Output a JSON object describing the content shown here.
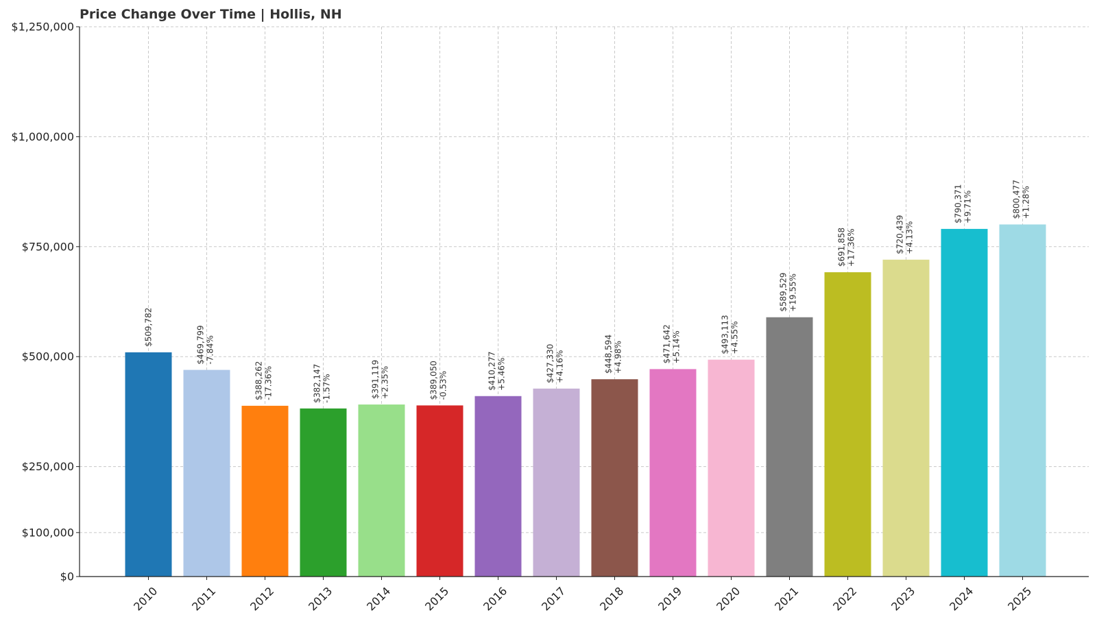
{
  "chart_data": {
    "type": "bar",
    "title": "Price Change Over Time | Hollis, NH",
    "xlabel": "",
    "ylabel": "",
    "categories": [
      "2010",
      "2011",
      "2012",
      "2013",
      "2014",
      "2015",
      "2016",
      "2017",
      "2018",
      "2019",
      "2020",
      "2021",
      "2022",
      "2023",
      "2024",
      "2025"
    ],
    "values": [
      509782,
      469799,
      388262,
      382147,
      391119,
      389050,
      410277,
      427330,
      448594,
      471642,
      493113,
      589529,
      691858,
      720439,
      790371,
      800477
    ],
    "value_labels": [
      "$509,782",
      "$469,799",
      "$388,262",
      "$382,147",
      "$391,119",
      "$389,050",
      "$410,277",
      "$427,330",
      "$448,594",
      "$471,642",
      "$493,113",
      "$589,529",
      "$691,858",
      "$720,439",
      "$790,371",
      "$800,477"
    ],
    "change_labels": [
      "",
      "-7.84%",
      "-17.36%",
      "-1.57%",
      "+2.35%",
      "-0.53%",
      "+5.46%",
      "+4.16%",
      "+4.98%",
      "+5.14%",
      "+4.55%",
      "+19.55%",
      "+17.36%",
      "+4.13%",
      "+9.71%",
      "+1.28%"
    ],
    "colors": [
      "#1f77b4",
      "#aec7e8",
      "#ff7f0e",
      "#2ca02c",
      "#98df8a",
      "#d62728",
      "#9467bd",
      "#c5b0d5",
      "#8c564b",
      "#e377c2",
      "#f7b6d2",
      "#7f7f7f",
      "#bcbd22",
      "#dbdb8d",
      "#17becf",
      "#9edae5"
    ],
    "yticks": [
      0,
      100000,
      250000,
      500000,
      750000,
      1000000,
      1250000
    ],
    "ytick_labels": [
      "$0",
      "$100,000",
      "$250,000",
      "$500,000",
      "$750,000",
      "$1,000,000",
      "$1,250,000"
    ],
    "ylim": [
      0,
      1250000
    ],
    "grid": true,
    "legend": "none"
  }
}
